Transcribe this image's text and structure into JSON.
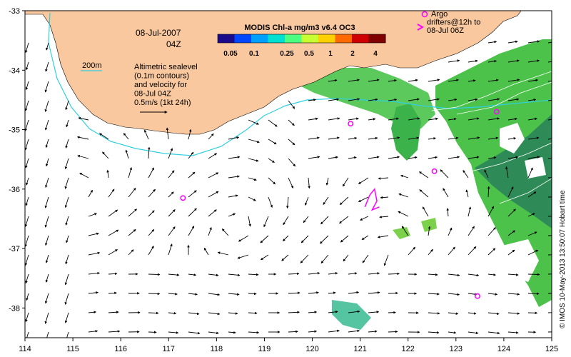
{
  "map": {
    "lon_range": [
      114,
      125
    ],
    "lat_range": [
      -38.5,
      -33
    ],
    "x_ticks": [
      114,
      115,
      116,
      117,
      118,
      119,
      120,
      121,
      122,
      123,
      124,
      125
    ],
    "y_ticks": [
      -33,
      -34,
      -35,
      -36,
      -37,
      -38
    ],
    "x_tick_labels": [
      "114",
      "115",
      "116",
      "117",
      "118",
      "119",
      "120",
      "121",
      "122",
      "123",
      "124",
      "125"
    ],
    "y_tick_labels": [
      "-33",
      "-34",
      "-35",
      "-36",
      "-37",
      "-38"
    ],
    "land_color": "#f9c89f",
    "isobath_color": "#30d0e0",
    "chl_colors": [
      "#2e8b57",
      "#3cb34a",
      "#7bd14a",
      "#55c48a",
      "#4fc0a8"
    ]
  },
  "colorbar": {
    "title": "MODIS Chl-a mg/m3 v6.4 OC3",
    "labels": [
      "0.05",
      "0.1",
      "0.25",
      "0.5",
      "1",
      "2",
      "4"
    ],
    "colors": [
      "#1a0a8c",
      "#0047ff",
      "#00a0ff",
      "#00e0d0",
      "#4cff80",
      "#c8ff30",
      "#ffd000",
      "#ff6a00",
      "#d00000",
      "#800000"
    ]
  },
  "annotations": {
    "date": "08-Jul-2007",
    "time": "04Z",
    "isobath_label": "200m",
    "legend_lines": [
      "Altimetric sealevel",
      "(0.1m contours)",
      "and velocity for",
      "08-Jul 04Z",
      "0.5m/s (1kt 24h)"
    ],
    "argo_lines": [
      "Argo",
      "drifters@12h to",
      "08-Jul 06Z"
    ],
    "credit": "© IMOS 10-May-2013 13:50:07 Hobart time"
  },
  "argo_floats": [
    {
      "lon": 120.8,
      "lat": -34.9
    },
    {
      "lon": 117.3,
      "lat": -36.15
    },
    {
      "lon": 122.55,
      "lat": -35.7
    },
    {
      "lon": 123.85,
      "lat": -34.7
    },
    {
      "lon": 123.45,
      "lat": -37.8
    }
  ],
  "drifter_track": [
    [
      121.1,
      -36.3
    ],
    [
      121.2,
      -36.1
    ],
    [
      121.3,
      -36.0
    ],
    [
      121.35,
      -36.2
    ],
    [
      121.25,
      -36.35
    ],
    [
      121.4,
      -36.3
    ]
  ]
}
